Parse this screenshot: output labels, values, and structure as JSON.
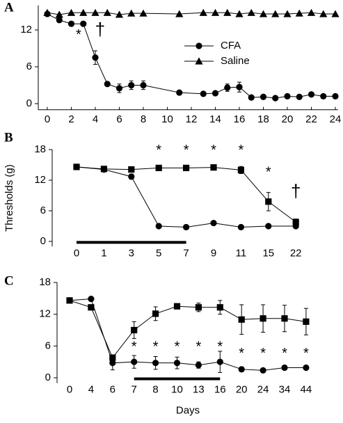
{
  "chart_data": [
    {
      "type": "line",
      "panel_label": "A",
      "x": [
        0,
        1,
        2,
        3,
        4,
        5,
        6,
        7,
        8,
        11,
        13,
        14,
        15,
        16,
        17,
        18,
        19,
        20,
        21,
        22,
        23,
        24
      ],
      "series": [
        {
          "name": "CFA",
          "color": "#000000",
          "marker": "circle",
          "values": [
            14.6,
            13.6,
            13,
            13,
            7.5,
            3.2,
            2.5,
            3,
            3,
            1.8,
            1.6,
            1.7,
            2.6,
            2.7,
            1,
            1.1,
            0.9,
            1.2,
            1.1,
            1.5,
            1.2,
            1.2
          ],
          "errors": [
            null,
            null,
            null,
            null,
            1.1,
            null,
            0.7,
            0.7,
            0.7,
            null,
            null,
            null,
            0.6,
            0.8,
            null,
            null,
            null,
            null,
            null,
            null,
            null,
            null
          ]
        },
        {
          "name": "Saline",
          "color": "#000000",
          "marker": "triangle",
          "values": [
            14.8,
            14.5,
            14.8,
            14.8,
            14.8,
            14.8,
            14.5,
            14.7,
            14.7,
            14.6,
            14.8,
            14.8,
            14.8,
            14.6,
            14.8,
            14.6,
            14.6,
            14.6,
            14.7,
            14.8,
            14.6,
            14.6
          ]
        }
      ],
      "xlim": [
        0,
        24
      ],
      "xticks": [
        0,
        2,
        4,
        6,
        8,
        10,
        12,
        14,
        16,
        18,
        20,
        22,
        24
      ],
      "ylim": [
        -1,
        16
      ],
      "yticks": [
        0,
        6,
        12
      ],
      "annotations": [
        {
          "text": "*",
          "x": 2.6,
          "y": 11.6
        },
        {
          "text": "†",
          "x": 4.4,
          "y": 11.9
        }
      ],
      "legend": "upper center"
    },
    {
      "type": "line",
      "panel_label": "B",
      "ylabel": "Thresholds (g)",
      "categories": [
        "0",
        "1",
        "3",
        "5",
        "7",
        "9",
        "11",
        "15",
        "22"
      ],
      "series": [
        {
          "color": "#000000",
          "marker": "square",
          "values": [
            14.6,
            14.2,
            14.1,
            14.4,
            14.4,
            14.5,
            14.0,
            7.8,
            3.8
          ],
          "errors": [
            null,
            null,
            null,
            null,
            null,
            null,
            0.7,
            1.8,
            0.6
          ]
        },
        {
          "color": "#000000",
          "marker": "circle",
          "values": [
            14.6,
            14.1,
            12.7,
            3.0,
            2.8,
            3.6,
            2.8,
            3.0,
            3.0
          ],
          "errors": [
            null,
            null,
            0.5,
            null,
            null,
            null,
            null,
            null,
            null
          ]
        }
      ],
      "ylim": [
        -1,
        18
      ],
      "yticks": [
        0,
        6,
        12,
        18
      ],
      "annotations": [
        {
          "text": "*",
          "x": "5",
          "y": 18.3
        },
        {
          "text": "*",
          "x": "7",
          "y": 18.3
        },
        {
          "text": "*",
          "x": "9",
          "y": 18.3
        },
        {
          "text": "*",
          "x": "11",
          "y": 18.3
        },
        {
          "text": "*",
          "x": "15",
          "y": 14.0
        },
        {
          "text": "†",
          "x": "22",
          "y": 9.6
        }
      ]
    },
    {
      "type": "line",
      "panel_label": "C",
      "xlabel": "Days",
      "categories": [
        "0",
        "4",
        "6",
        "7",
        "8",
        "10",
        "13",
        "16",
        "20",
        "24",
        "34",
        "44"
      ],
      "series": [
        {
          "color": "#000000",
          "marker": "square",
          "values": [
            14.6,
            13.3,
            3.8,
            9.0,
            12.1,
            13.5,
            13.3,
            13.3,
            11.0,
            11.2,
            11.2,
            10.6
          ],
          "errors": [
            null,
            null,
            0.5,
            1.6,
            1.3,
            0.5,
            0.8,
            1.3,
            2.8,
            2.6,
            2.5,
            2.5
          ]
        },
        {
          "color": "#000000",
          "marker": "circle",
          "values": [
            14.6,
            14.9,
            2.8,
            3.0,
            2.8,
            2.8,
            2.4,
            3.0,
            1.6,
            1.4,
            1.9,
            1.9
          ],
          "errors": [
            null,
            null,
            1.3,
            1.2,
            1.2,
            1.1,
            0.6,
            2.0,
            null,
            null,
            null,
            null
          ]
        }
      ],
      "ylim": [
        -1,
        18
      ],
      "yticks": [
        0,
        6,
        12,
        18
      ],
      "annotations": [
        {
          "text": "*",
          "x": "7",
          "y": 6.3
        },
        {
          "text": "*",
          "x": "8",
          "y": 6.3
        },
        {
          "text": "*",
          "x": "10",
          "y": 6.3
        },
        {
          "text": "*",
          "x": "13",
          "y": 6.3
        },
        {
          "text": "*",
          "x": "16",
          "y": 6.3
        },
        {
          "text": "*",
          "x": "20",
          "y": 5.0
        },
        {
          "text": "*",
          "x": "24",
          "y": 5.0
        },
        {
          "text": "*",
          "x": "34",
          "y": 5.0
        },
        {
          "text": "*",
          "x": "44",
          "y": 5.0
        }
      ]
    }
  ]
}
